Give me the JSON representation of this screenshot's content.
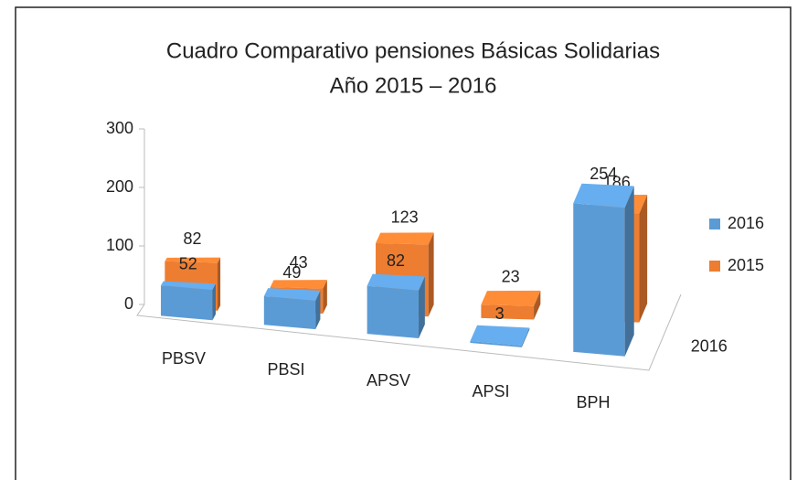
{
  "chart_data": {
    "type": "bar3d",
    "title": [
      "Cuadro Comparativo pensiones Básicas Solidarias",
      "Año 2015 – 2016"
    ],
    "categories": [
      "PBSV",
      "PBSI",
      "APSV",
      "APSI",
      "BPH"
    ],
    "series": [
      {
        "name": "2016",
        "color": "#5b9bd5",
        "values": [
          52,
          49,
          82,
          3,
          254
        ]
      },
      {
        "name": "2015",
        "color": "#ed7d31",
        "values": [
          82,
          43,
          123,
          23,
          186
        ]
      }
    ],
    "series_axis_labels": [
      "2016"
    ],
    "ylim": [
      0,
      300
    ],
    "yticks": [
      0,
      100,
      200,
      300
    ],
    "legend": "right"
  }
}
